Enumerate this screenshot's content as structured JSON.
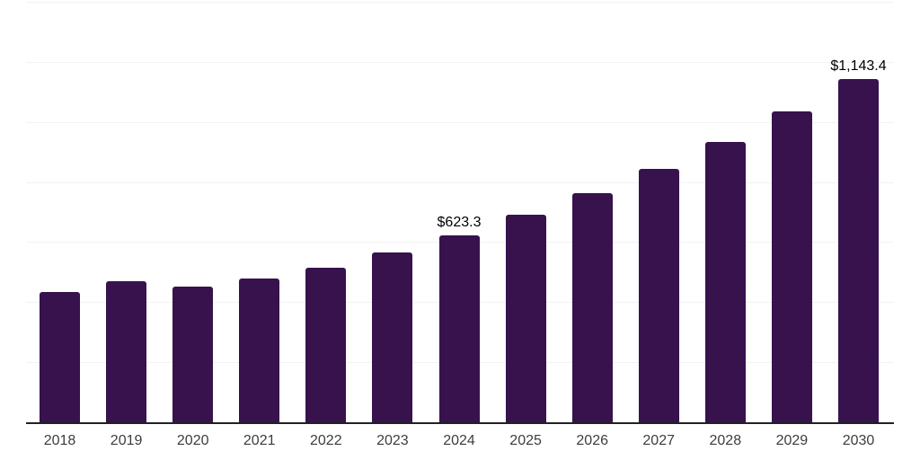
{
  "chart_data": {
    "type": "bar",
    "title": "",
    "xlabel": "",
    "ylabel": "",
    "categories": [
      "2018",
      "2019",
      "2020",
      "2021",
      "2022",
      "2023",
      "2024",
      "2025",
      "2026",
      "2027",
      "2028",
      "2029",
      "2030"
    ],
    "values": [
      433,
      470,
      452,
      479,
      516,
      565,
      623.3,
      690,
      763,
      845,
      933,
      1035,
      1143.4
    ],
    "point_labels": [
      "",
      "",
      "",
      "",
      "",
      "",
      "$623.3",
      "",
      "",
      "",
      "",
      "",
      "$1,143.4"
    ],
    "ylim": [
      0,
      1400
    ],
    "gridline_step": 200,
    "grid": "horizontal",
    "legend": "none",
    "y_axis_tick_labels_visible": false
  },
  "colors": {
    "background": "#ffffff",
    "bar": "#37124d",
    "gridline": "#f2f2f2",
    "axis_line": "#222222",
    "data_label": "#000000",
    "tick_label": "#3d3d3d"
  }
}
